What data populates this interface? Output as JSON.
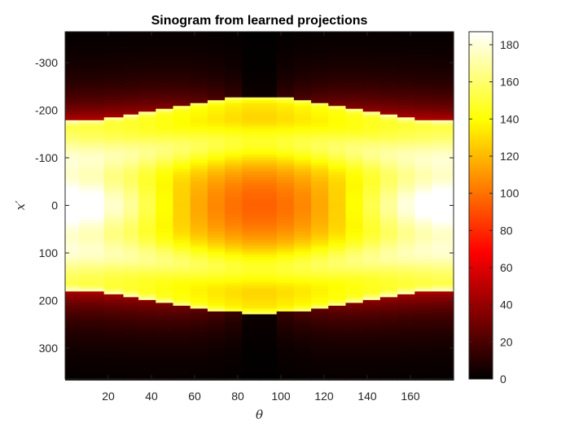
{
  "chart_data": {
    "type": "heatmap",
    "title": "Sinogram from learned projections",
    "xlabel": "θ",
    "ylabel": "x′",
    "x_range": [
      0,
      180
    ],
    "y_range": [
      -365,
      365
    ],
    "y_reversed": true,
    "x_ticks": [
      20,
      40,
      60,
      80,
      100,
      120,
      140,
      160
    ],
    "x_tick_labels": [
      "20",
      "40",
      "60",
      "80",
      "100",
      "120",
      "140",
      "160"
    ],
    "y_ticks": [
      -300,
      -200,
      -100,
      0,
      100,
      200,
      300
    ],
    "y_tick_labels": [
      "-300",
      "-200",
      "-100",
      "0",
      "100",
      "200",
      "300"
    ],
    "colormap": "hot",
    "colorbar": {
      "range": [
        0,
        187
      ],
      "ticks": [
        0,
        20,
        40,
        60,
        80,
        100,
        120,
        140,
        160,
        180
      ],
      "tick_labels": [
        "0",
        "20",
        "40",
        "60",
        "80",
        "100",
        "120",
        "140",
        "160",
        "180"
      ]
    },
    "theta_columns": [
      1,
      12,
      24,
      30,
      38,
      46,
      54,
      62,
      70,
      78,
      86,
      94,
      102,
      110,
      118,
      126,
      134,
      142,
      150,
      158,
      166,
      174
    ],
    "object_half_width": {
      "min": 178,
      "max": 228,
      "min_at_theta": 0,
      "max_at_theta": 90
    },
    "colors": {
      "axis": "#262626",
      "background": "#ffffff"
    }
  }
}
